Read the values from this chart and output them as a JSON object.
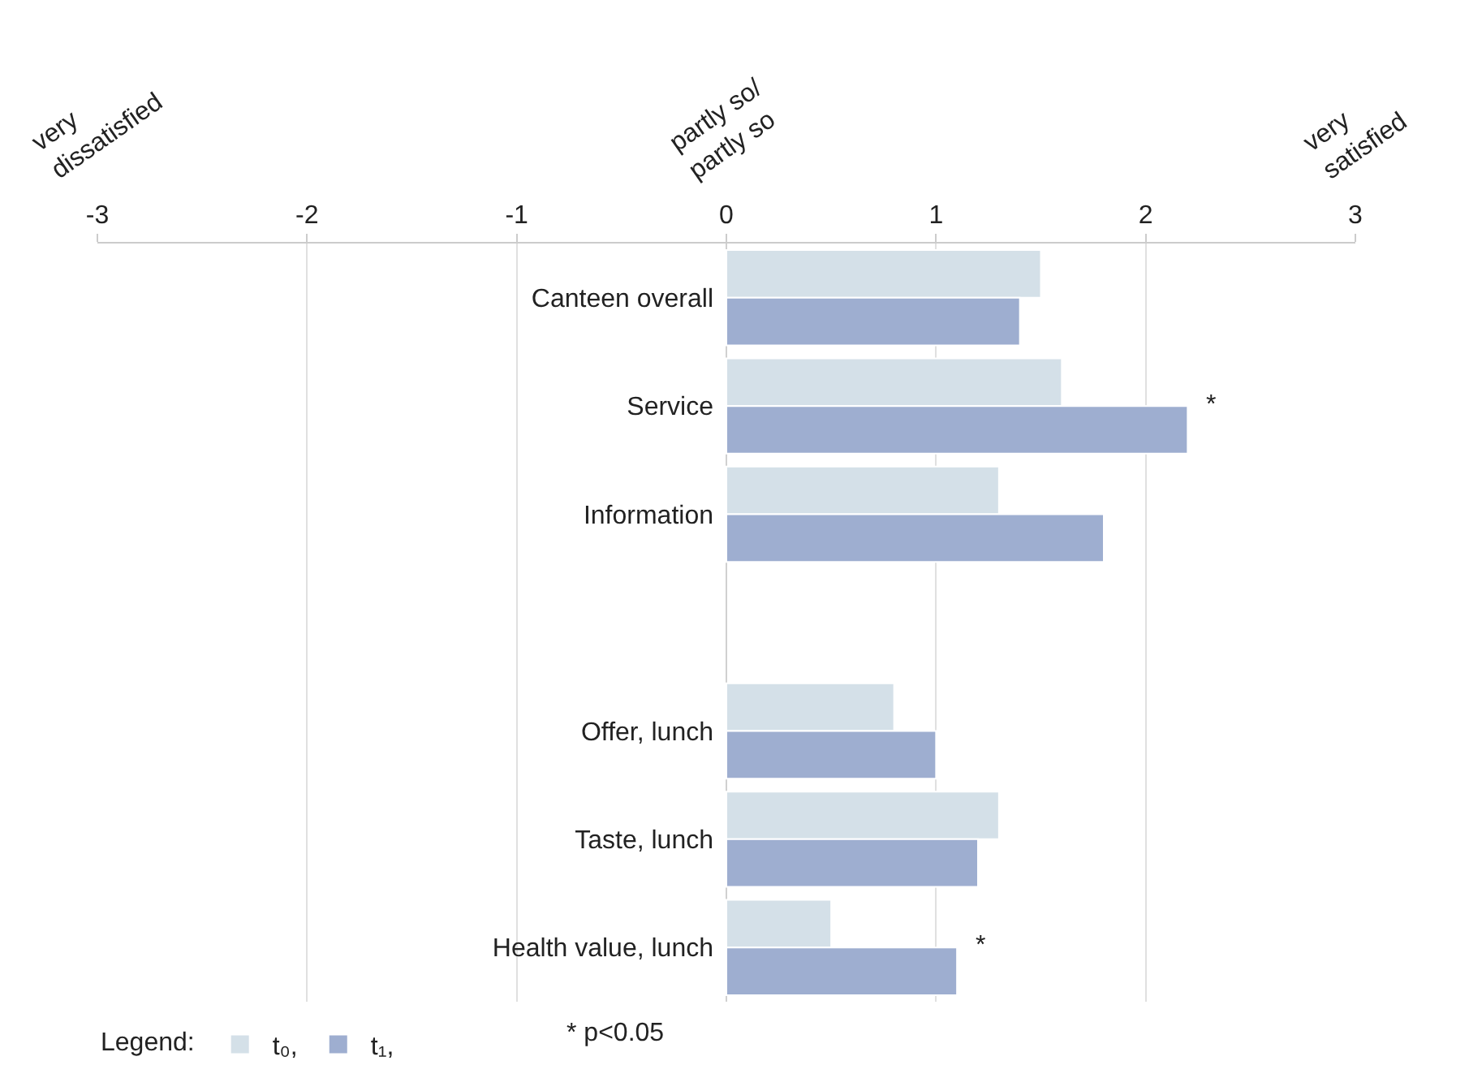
{
  "chart_data": {
    "type": "bar",
    "orientation": "horizontal",
    "categories": [
      "Canteen overall",
      "Service",
      "Information",
      null,
      "Offer, lunch",
      "Taste, lunch",
      "Health value, lunch"
    ],
    "series": [
      {
        "name": "t₀,",
        "color": "#d4e0e8",
        "values": [
          1.5,
          1.6,
          1.3,
          null,
          0.8,
          1.3,
          0.5
        ]
      },
      {
        "name": "t₁,",
        "color": "#9eaed0",
        "values": [
          1.4,
          2.2,
          1.8,
          null,
          1.0,
          1.2,
          1.1
        ]
      }
    ],
    "xlim": [
      -3,
      3
    ],
    "xticks": [
      -3,
      -2,
      -1,
      0,
      1,
      2,
      3
    ],
    "grid": "x",
    "legend": "bottom",
    "legend_title": "Legend:",
    "annotations": [
      "very\ndissatisfied",
      "partly so/\npartly so",
      "very\nsatisfied",
      {
        "text": "*",
        "x": 2.2,
        "y": "Service"
      },
      {
        "text": "*",
        "x": 1.1,
        "y": "Health value, lunch"
      },
      "* p<0.05"
    ]
  }
}
